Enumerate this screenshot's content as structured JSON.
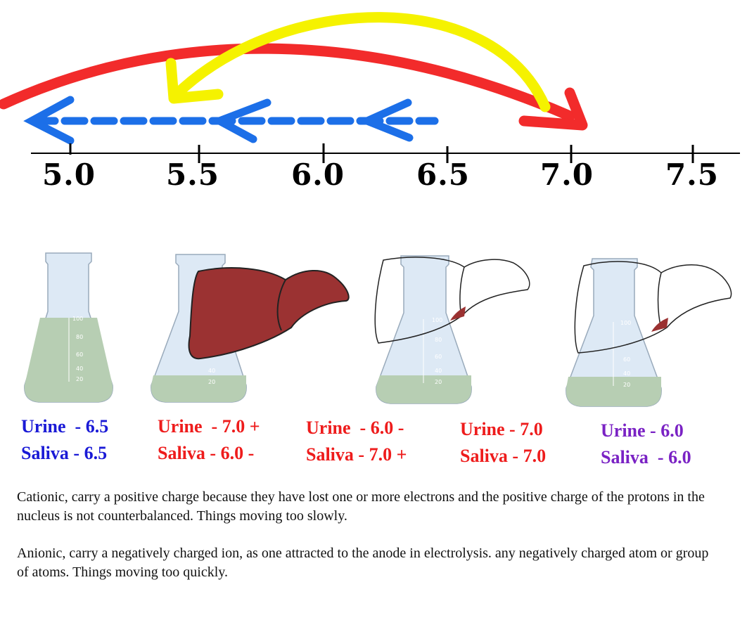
{
  "scale": {
    "ticks": [
      "5.0",
      "5.5",
      "6.0",
      "6.5",
      "7.0",
      "7.5"
    ]
  },
  "flasks": [
    {
      "name": "flask-1",
      "liver": "none",
      "graduations": [
        "100",
        "80",
        "60",
        "40",
        "20"
      ]
    },
    {
      "name": "flask-2",
      "liver": "filled",
      "graduations": [
        "40",
        "20"
      ]
    },
    {
      "name": "flask-3",
      "liver": "outline",
      "graduations": [
        "100",
        "80",
        "60",
        "40",
        "20"
      ]
    },
    {
      "name": "flask-4",
      "liver": "outline",
      "graduations": [
        "100",
        "60",
        "40",
        "20"
      ]
    }
  ],
  "labels": [
    {
      "urine": "Urine  - 6.5",
      "saliva": "Saliva - 6.5",
      "color": "#1a1ad6"
    },
    {
      "urine": "Urine  - 7.0 +",
      "saliva": "Saliva - 6.0 -",
      "color": "#ee1c1c"
    },
    {
      "urine": "Urine  - 6.0 -",
      "saliva": "Saliva - 7.0 +",
      "color": "#ee1c1c"
    },
    {
      "urine": "Urine - 7.0",
      "saliva": "Saliva - 7.0",
      "color": "#ee1c1c"
    },
    {
      "urine": "Urine - 6.0",
      "saliva": "Saliva  - 6.0",
      "color": "#7a22c4"
    }
  ],
  "paragraphs": {
    "cationic": "Cationic, carry a positive charge because they have lost one or more electrons and the positive charge of the protons in the nucleus is not counterbalanced.  Things moving too slowly.",
    "anionic": "Anionic, carry a negatively charged ion, as one attracted to the anode in electrolysis. any negatively charged atom or group of atoms.  Things moving too quickly."
  },
  "colors": {
    "red_arrow": "#f22b2b",
    "yellow_arrow": "#f5f200",
    "blue_arrow": "#1c6fe8",
    "liquid": "#b7ceb3",
    "glass": "#dde9f5",
    "liver": "#9b3232"
  }
}
